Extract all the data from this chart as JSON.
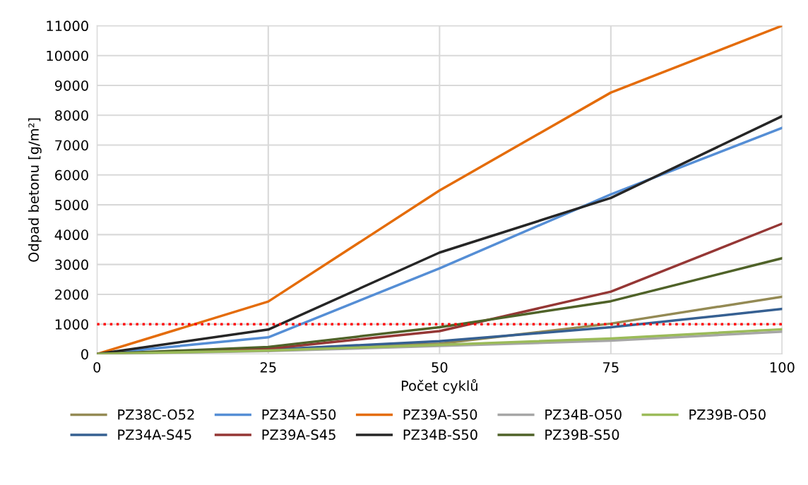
{
  "chart_data": {
    "type": "line",
    "xlabel": "Počet cyklů",
    "ylabel": "Odpad betonu [g/m²]",
    "x": [
      0,
      25,
      50,
      75,
      100
    ],
    "xlim": [
      0,
      100
    ],
    "xticks": [
      0,
      25,
      50,
      75,
      100
    ],
    "ylim": [
      0,
      11000
    ],
    "yticks": [
      0,
      1000,
      2000,
      3000,
      4000,
      5000,
      6000,
      7000,
      8000,
      9000,
      10000,
      11000
    ],
    "grid": true,
    "legend": "bottom",
    "marker": "none",
    "line_style": "solid",
    "ref_lines": [
      {
        "axis": "y",
        "value": 1000,
        "color": "#ff0000",
        "line_style": "dotted"
      }
    ],
    "series": [
      {
        "name": "PZ38C-O52",
        "color": "#948a54",
        "values": [
          0,
          150,
          350,
          1020,
          1920
        ]
      },
      {
        "name": "PZ34A-S45",
        "color": "#366092",
        "values": [
          0,
          150,
          430,
          900,
          1510
        ]
      },
      {
        "name": "PZ34A-S50",
        "color": "#558ed5",
        "values": [
          0,
          560,
          2870,
          5350,
          7580
        ]
      },
      {
        "name": "PZ39A-S45",
        "color": "#953735",
        "values": [
          0,
          180,
          770,
          2090,
          4370
        ]
      },
      {
        "name": "PZ39A-S50",
        "color": "#e46c0a",
        "values": [
          0,
          1760,
          5480,
          8760,
          11000
        ]
      },
      {
        "name": "PZ34B-S50",
        "color": "#262626",
        "values": [
          0,
          820,
          3400,
          5230,
          7970
        ]
      },
      {
        "name": "PZ34B-O50",
        "color": "#a6a6a6",
        "values": [
          0,
          100,
          270,
          450,
          750
        ]
      },
      {
        "name": "PZ39B-S50",
        "color": "#4f6228",
        "values": [
          0,
          240,
          900,
          1770,
          3210
        ]
      },
      {
        "name": "PZ39B-O50",
        "color": "#9bbb59",
        "values": [
          0,
          120,
          310,
          520,
          830
        ]
      }
    ]
  }
}
